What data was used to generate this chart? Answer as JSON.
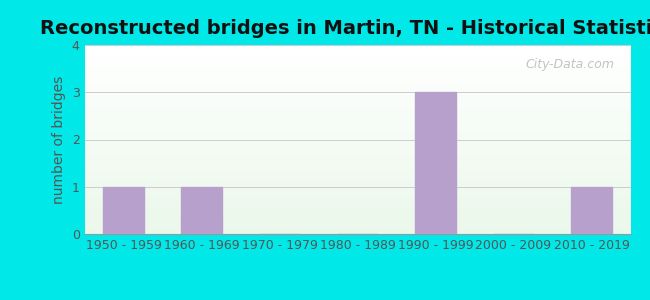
{
  "title": "Reconstructed bridges in Martin, TN - Historical Statistics",
  "categories": [
    "1950 - 1959",
    "1960 - 1969",
    "1970 - 1979",
    "1980 - 1989",
    "1990 - 1999",
    "2000 - 2009",
    "2010 - 2019"
  ],
  "values": [
    1,
    1,
    0,
    0,
    3,
    0,
    1
  ],
  "bar_color": "#b8a0cc",
  "ylabel": "number of bridges",
  "ylim": [
    0,
    4
  ],
  "yticks": [
    0,
    1,
    2,
    3,
    4
  ],
  "background_outer": "#00e8e8",
  "watermark": "City-Data.com",
  "title_fontsize": 14,
  "ylabel_fontsize": 10,
  "tick_fontsize": 9,
  "tick_color": "#555555",
  "ylabel_color": "#555555"
}
